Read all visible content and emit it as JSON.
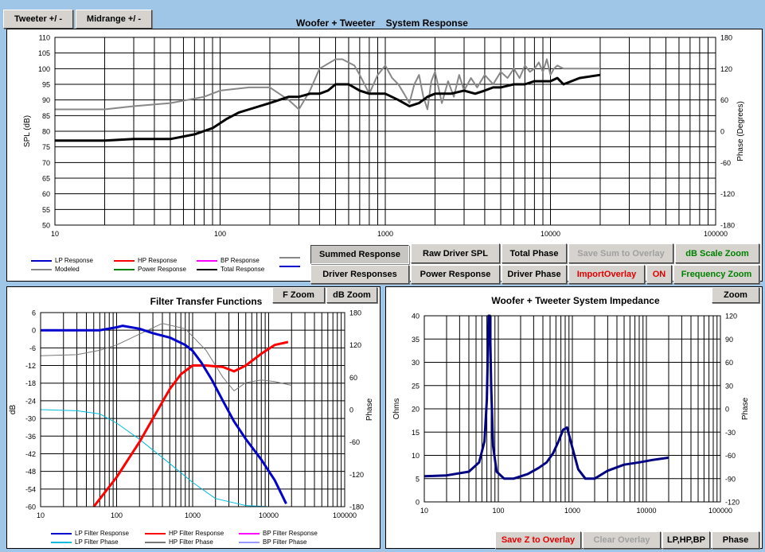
{
  "top_buttons": {
    "tweeter": "Tweeter  +/ -",
    "midrange": "Midrange  +/ -"
  },
  "colors": {
    "lp": "#0000cc",
    "hp": "#ff0000",
    "bp": "#ff00ff",
    "modeled": "#888888",
    "power": "#008000",
    "total": "#000000",
    "lp_phase": "#00bbdd",
    "hp_phase": "#777777",
    "bp_phase": "#9999ff",
    "impedance": "#000080"
  },
  "buttons": {
    "summed": "Summed Response",
    "raw_driver_spl": "Raw Driver SPL",
    "total_phase": "Total Phase",
    "save_sum": "Save Sum to Overlay",
    "db_scale_zoom": "dB Scale Zoom",
    "driver_responses": "Driver Responses",
    "power_response": "Power Response",
    "driver_phase": "Driver Phase",
    "import_overlay": "ImportOverlay",
    "on": "ON",
    "frequency_zoom": "Frequency Zoom",
    "f_zoom": "F Zoom",
    "db_zoom": "dB Zoom",
    "zoom": "Zoom",
    "save_z": "Save Z to Overlay",
    "clear_overlay": "Clear Overlay",
    "lphpbp": "LP,HP,BP",
    "phase": "Phase"
  },
  "legend_main": [
    {
      "label": "LP Response",
      "color": "#0000cc"
    },
    {
      "label": "HP Response",
      "color": "#ff0000"
    },
    {
      "label": "BP Response",
      "color": "#ff00ff"
    },
    {
      "label": "",
      "color": "#888888"
    },
    {
      "label": "Modeled",
      "color": "#888888"
    },
    {
      "label": "Power Response",
      "color": "#008000"
    },
    {
      "label": "Total Response",
      "color": "#000000"
    },
    {
      "label": "",
      "color": "#0000cc"
    }
  ],
  "legend_filter": [
    {
      "label": "LP Filter Response",
      "color": "#0000cc"
    },
    {
      "label": "HP Filter Response",
      "color": "#ff0000"
    },
    {
      "label": "BP Filter Response",
      "color": "#ff00ff"
    },
    {
      "label": "LP Filter Phase",
      "color": "#00bbdd"
    },
    {
      "label": "HP Filter Phase",
      "color": "#777777"
    },
    {
      "label": "BP Filter Phase",
      "color": "#9999ff"
    }
  ],
  "chart_data": [
    {
      "type": "line",
      "title": "Woofer + Tweeter    System Response",
      "ylabel": "SPL (dB)",
      "y2label": "Phase (Degrees)",
      "xscale": "log",
      "xlim": [
        10,
        100000
      ],
      "ylim": [
        50,
        110
      ],
      "y2lim": [
        -180,
        180
      ],
      "xticks": [
        "10",
        "100",
        "1000",
        "10000",
        "100000"
      ],
      "yticks": [
        "50",
        "55",
        "60",
        "65",
        "70",
        "75",
        "80",
        "85",
        "90",
        "95",
        "100",
        "105",
        "110"
      ],
      "y2ticks": [
        "-180",
        "-120",
        "-60",
        "0",
        "60",
        "120",
        "180"
      ],
      "series": [
        {
          "name": "Modeled",
          "color": "#888888",
          "width": 2,
          "x": [
            10,
            20,
            30,
            50,
            80,
            100,
            150,
            200,
            260,
            300,
            350,
            400,
            500,
            550,
            650,
            700,
            800,
            900,
            1000,
            1100,
            1200,
            1300,
            1400,
            1500,
            1600,
            1700,
            1800,
            1900,
            2000,
            2200,
            2400,
            2600,
            2800,
            3000,
            3300,
            3600,
            4000,
            4500,
            5000,
            5500,
            6000,
            6500,
            7000,
            7500,
            8000,
            8500,
            9000,
            9500,
            10000,
            10500,
            11000,
            12000,
            15000,
            20000
          ],
          "y": [
            87,
            87,
            88,
            89,
            91,
            93,
            94,
            94,
            90,
            87,
            93,
            100,
            103,
            103,
            101,
            98,
            92,
            98,
            101,
            97,
            95,
            92,
            89,
            95,
            98,
            91,
            87,
            96,
            99,
            89,
            96,
            91,
            98,
            93,
            97,
            94,
            98,
            95,
            99,
            97,
            100,
            97,
            101,
            99,
            100,
            102,
            99,
            103,
            98,
            100,
            101,
            100,
            100,
            100
          ]
        },
        {
          "name": "Total Response",
          "color": "#000000",
          "width": 3,
          "x": [
            10,
            20,
            30,
            50,
            70,
            90,
            110,
            130,
            150,
            200,
            260,
            300,
            350,
            400,
            450,
            500,
            550,
            600,
            700,
            800,
            1000,
            1200,
            1400,
            1600,
            1800,
            2000,
            2500,
            3000,
            3500,
            4000,
            4500,
            5000,
            6000,
            7000,
            8000,
            9000,
            10000,
            11000,
            12000,
            15000,
            20000
          ],
          "y": [
            77,
            77,
            77.5,
            77.5,
            79,
            81,
            84,
            86,
            87,
            89,
            91,
            91,
            92,
            92,
            93,
            95,
            95,
            95,
            93,
            92,
            92,
            90,
            88,
            89,
            91,
            92,
            92,
            93,
            92,
            93,
            94,
            94,
            95,
            95,
            96,
            96,
            96,
            97,
            95,
            97,
            98
          ]
        }
      ]
    },
    {
      "type": "line",
      "title": "Filter Transfer Functions",
      "ylabel": "dB",
      "y2label": "Phase",
      "xscale": "log",
      "xlim": [
        10,
        100000
      ],
      "ylim": [
        -60,
        6
      ],
      "y2lim": [
        -180,
        180
      ],
      "xticks": [
        "10",
        "100",
        "1000",
        "10000",
        "100000"
      ],
      "yticks": [
        "-60",
        "-54",
        "-48",
        "-42",
        "-36",
        "-30",
        "-24",
        "-18",
        "-12",
        "-6",
        "0",
        "6"
      ],
      "y2ticks": [
        "-180",
        "-120",
        "-60",
        "0",
        "60",
        "120",
        "180"
      ],
      "series": [
        {
          "name": "LP Filter Phase",
          "color": "#00bbdd",
          "width": 1,
          "axis": "y2",
          "x": [
            10,
            30,
            60,
            100,
            200,
            500,
            1000,
            2000,
            5000,
            10000,
            20000
          ],
          "y": [
            0,
            -2,
            -8,
            -25,
            -55,
            -100,
            -135,
            -165,
            -178,
            -180,
            -180
          ]
        },
        {
          "name": "HP Filter Phase",
          "color": "#777777",
          "width": 1,
          "axis": "y2",
          "x": [
            10,
            30,
            60,
            100,
            200,
            400,
            800,
            1500,
            2500,
            3500,
            5000,
            8000,
            12000,
            20000
          ],
          "y": [
            100,
            102,
            110,
            120,
            140,
            160,
            150,
            110,
            60,
            35,
            50,
            55,
            52,
            45
          ]
        },
        {
          "name": "HP Filter Response",
          "color": "#ff0000",
          "width": 3,
          "x": [
            50,
            100,
            200,
            300,
            500,
            700,
            1000,
            1500,
            2500,
            3500,
            5000,
            8000,
            12000,
            18000
          ],
          "y": [
            -60,
            -50,
            -38,
            -30,
            -20,
            -15,
            -12,
            -12,
            -12.5,
            -14,
            -12,
            -8,
            -5,
            -4
          ]
        },
        {
          "name": "LP Filter Response",
          "color": "#0000cc",
          "width": 3,
          "x": [
            10,
            30,
            60,
            100,
            120,
            200,
            300,
            500,
            800,
            1000,
            1300,
            1800,
            2500,
            3500,
            5000,
            8000,
            12000,
            17000
          ],
          "y": [
            0,
            0,
            0,
            1,
            1.5,
            0.5,
            -1,
            -2.5,
            -5,
            -7,
            -11,
            -17,
            -24,
            -31,
            -37,
            -44,
            -51,
            -59
          ]
        }
      ]
    },
    {
      "type": "line",
      "title": "Woofer + Tweeter    System Impedance",
      "ylabel": "Ohms",
      "y2label": "Phase",
      "xscale": "log",
      "xlim": [
        10,
        100000
      ],
      "ylim": [
        0,
        40
      ],
      "y2lim": [
        -120,
        120
      ],
      "xticks": [
        "10",
        "100",
        "1000",
        "10000",
        "100000"
      ],
      "yticks": [
        "0",
        "5",
        "10",
        "15",
        "20",
        "25",
        "30",
        "35",
        "40"
      ],
      "y2ticks": [
        "-120",
        "-90",
        "-60",
        "-30",
        "0",
        "30",
        "60",
        "90",
        "120"
      ],
      "series": [
        {
          "name": "Impedance",
          "color": "#000080",
          "width": 3,
          "x": [
            10,
            20,
            40,
            55,
            65,
            70,
            74,
            77,
            80,
            85,
            95,
            120,
            160,
            250,
            350,
            450,
            550,
            650,
            750,
            850,
            950,
            1200,
            1500,
            2000,
            3000,
            5000,
            8000,
            12000,
            20000
          ],
          "y": [
            5.5,
            5.7,
            6.5,
            8.5,
            13,
            22,
            40,
            40,
            25,
            12,
            6.5,
            5,
            5,
            6,
            7.3,
            8.5,
            10.5,
            13,
            15.5,
            16,
            13,
            7,
            5,
            5,
            6.7,
            8,
            8.5,
            9,
            9.5
          ]
        }
      ]
    }
  ]
}
